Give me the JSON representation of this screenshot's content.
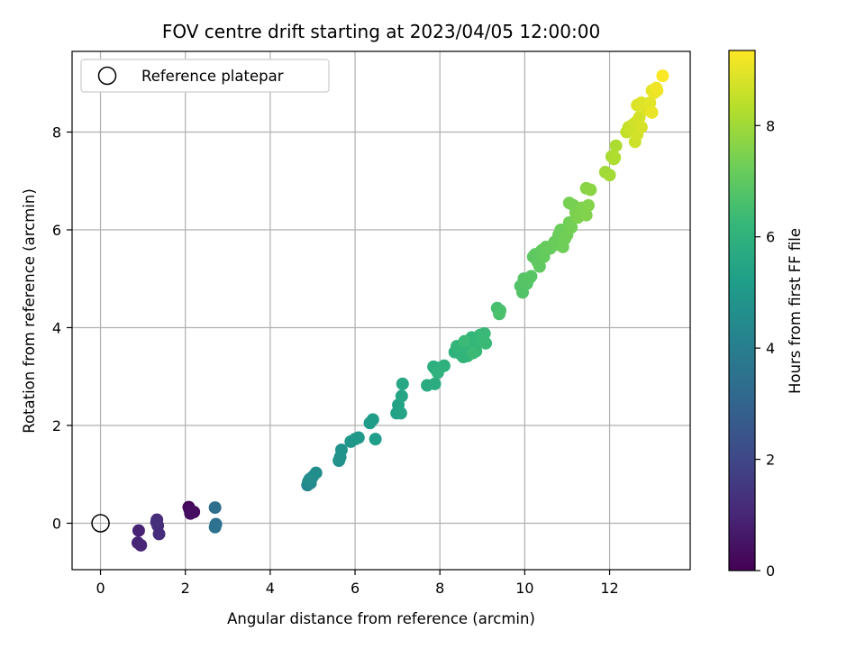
{
  "chart_data": {
    "type": "scatter",
    "title": "FOV centre drift starting at 2023/04/05 12:00:00",
    "xlabel": "Angular distance from reference (arcmin)",
    "ylabel": "Rotation from reference (arcmin)",
    "xlim": [
      -0.67,
      13.9
    ],
    "ylim": [
      -0.95,
      9.65
    ],
    "xticks": [
      0,
      2,
      4,
      6,
      8,
      10,
      12
    ],
    "yticks": [
      0,
      2,
      4,
      6,
      8
    ],
    "grid": true,
    "legend": {
      "placement": "top-left",
      "entries": [
        "Reference platepar"
      ]
    },
    "reference_point": {
      "x": 0,
      "y": 0
    },
    "colorbar": {
      "label": "Hours from first FF file",
      "colormap": "viridis",
      "range": [
        0,
        9.35
      ],
      "ticks": [
        0,
        2,
        4,
        6,
        8
      ]
    },
    "points": [
      [
        2.08,
        0.33,
        0.15
      ],
      [
        2.12,
        0.2,
        0.2
      ],
      [
        2.2,
        0.23,
        0.25
      ],
      [
        2.1,
        0.28,
        0.3
      ],
      [
        2.15,
        0.22,
        0.35
      ],
      [
        0.9,
        -0.15,
        0.9
      ],
      [
        0.88,
        -0.4,
        0.95
      ],
      [
        0.95,
        -0.45,
        1.0
      ],
      [
        1.33,
        0.07,
        1.1
      ],
      [
        1.35,
        -0.05,
        1.15
      ],
      [
        1.38,
        -0.22,
        1.2
      ],
      [
        1.32,
        0.02,
        1.25
      ],
      [
        2.7,
        0.32,
        3.4
      ],
      [
        2.72,
        -0.02,
        3.45
      ],
      [
        2.7,
        -0.08,
        3.5
      ],
      [
        4.88,
        0.78,
        4.35
      ],
      [
        4.9,
        0.85,
        4.4
      ],
      [
        4.95,
        0.82,
        4.45
      ],
      [
        5.0,
        0.95,
        4.5
      ],
      [
        5.08,
        1.03,
        4.55
      ],
      [
        4.93,
        0.9,
        4.6
      ],
      [
        5.62,
        1.28,
        4.7
      ],
      [
        5.65,
        1.35,
        4.75
      ],
      [
        5.68,
        1.5,
        4.8
      ],
      [
        5.9,
        1.67,
        4.9
      ],
      [
        6.0,
        1.72,
        4.95
      ],
      [
        6.08,
        1.75,
        5.0
      ],
      [
        6.35,
        2.05,
        5.1
      ],
      [
        6.42,
        2.12,
        5.15
      ],
      [
        6.48,
        1.72,
        5.2
      ],
      [
        6.98,
        2.25,
        5.35
      ],
      [
        7.02,
        2.42,
        5.4
      ],
      [
        7.08,
        2.25,
        5.45
      ],
      [
        7.1,
        2.6,
        5.5
      ],
      [
        7.12,
        2.85,
        5.55
      ],
      [
        7.7,
        2.82,
        5.7
      ],
      [
        7.88,
        2.85,
        5.75
      ],
      [
        7.9,
        3.15,
        5.8
      ],
      [
        7.85,
        3.2,
        5.85
      ],
      [
        8.0,
        3.18,
        5.9
      ],
      [
        8.1,
        3.22,
        5.95
      ],
      [
        7.95,
        3.08,
        5.98
      ],
      [
        8.35,
        3.5,
        6.0
      ],
      [
        8.45,
        3.58,
        6.02
      ],
      [
        8.5,
        3.45,
        6.05
      ],
      [
        8.55,
        3.4,
        6.08
      ],
      [
        8.6,
        3.5,
        6.1
      ],
      [
        8.65,
        3.42,
        6.12
      ],
      [
        8.4,
        3.62,
        6.14
      ],
      [
        8.7,
        3.7,
        6.15
      ],
      [
        8.75,
        3.8,
        6.18
      ],
      [
        8.8,
        3.6,
        6.2
      ],
      [
        8.85,
        3.52,
        6.22
      ],
      [
        8.9,
        3.75,
        6.24
      ],
      [
        8.95,
        3.85,
        6.26
      ],
      [
        9.0,
        3.72,
        6.28
      ],
      [
        9.05,
        3.88,
        6.3
      ],
      [
        9.08,
        3.68,
        6.32
      ],
      [
        8.58,
        3.72,
        6.34
      ],
      [
        8.78,
        3.48,
        6.36
      ],
      [
        9.35,
        4.4,
        6.55
      ],
      [
        9.4,
        4.28,
        6.6
      ],
      [
        9.42,
        4.35,
        6.62
      ],
      [
        9.9,
        4.85,
        6.75
      ],
      [
        9.95,
        4.72,
        6.78
      ],
      [
        10.0,
        4.95,
        6.8
      ],
      [
        10.05,
        4.9,
        6.82
      ],
      [
        9.98,
        5.0,
        6.84
      ],
      [
        10.1,
        5.0,
        6.86
      ],
      [
        10.15,
        5.05,
        6.88
      ],
      [
        10.2,
        5.45,
        6.95
      ],
      [
        10.25,
        5.5,
        6.98
      ],
      [
        10.3,
        5.35,
        7.0
      ],
      [
        10.35,
        5.25,
        7.02
      ],
      [
        10.4,
        5.58,
        7.05
      ],
      [
        10.45,
        5.45,
        7.08
      ],
      [
        10.5,
        5.65,
        7.1
      ],
      [
        10.6,
        5.62,
        7.12
      ],
      [
        10.7,
        5.75,
        7.15
      ],
      [
        10.75,
        5.7,
        7.18
      ],
      [
        10.8,
        5.9,
        7.2
      ],
      [
        10.85,
        6.0,
        7.22
      ],
      [
        10.9,
        5.65,
        7.25
      ],
      [
        10.95,
        5.82,
        7.28
      ],
      [
        11.0,
        5.9,
        7.3
      ],
      [
        11.05,
        6.15,
        7.32
      ],
      [
        11.1,
        6.05,
        7.35
      ],
      [
        11.05,
        6.55,
        7.4
      ],
      [
        11.15,
        6.5,
        7.42
      ],
      [
        11.2,
        6.35,
        7.45
      ],
      [
        11.25,
        6.25,
        7.48
      ],
      [
        11.3,
        6.4,
        7.5
      ],
      [
        11.35,
        6.45,
        7.52
      ],
      [
        11.45,
        6.3,
        7.55
      ],
      [
        11.5,
        6.5,
        7.58
      ],
      [
        11.45,
        6.85,
        7.65
      ],
      [
        11.55,
        6.82,
        7.7
      ],
      [
        11.9,
        7.18,
        8.0
      ],
      [
        12.0,
        7.12,
        8.05
      ],
      [
        12.05,
        7.5,
        8.1
      ],
      [
        12.1,
        7.45,
        8.15
      ],
      [
        12.15,
        7.72,
        8.2
      ],
      [
        12.12,
        7.48,
        8.22
      ],
      [
        12.4,
        8.0,
        8.5
      ],
      [
        12.45,
        8.1,
        8.55
      ],
      [
        12.5,
        8.05,
        8.6
      ],
      [
        12.55,
        8.15,
        8.62
      ],
      [
        12.6,
        7.8,
        8.65
      ],
      [
        12.62,
        8.2,
        8.7
      ],
      [
        12.65,
        7.95,
        8.72
      ],
      [
        12.7,
        8.3,
        8.75
      ],
      [
        12.75,
        8.1,
        8.78
      ],
      [
        12.65,
        8.55,
        8.85
      ],
      [
        12.75,
        8.6,
        8.88
      ],
      [
        12.85,
        8.5,
        8.9
      ],
      [
        12.9,
        8.45,
        8.92
      ],
      [
        12.95,
        8.6,
        8.95
      ],
      [
        13.0,
        8.85,
        9.0
      ],
      [
        13.05,
        8.8,
        9.05
      ],
      [
        13.0,
        8.4,
        9.08
      ],
      [
        13.1,
        8.9,
        9.12
      ],
      [
        13.12,
        8.85,
        9.15
      ],
      [
        13.25,
        9.15,
        9.3
      ]
    ]
  }
}
